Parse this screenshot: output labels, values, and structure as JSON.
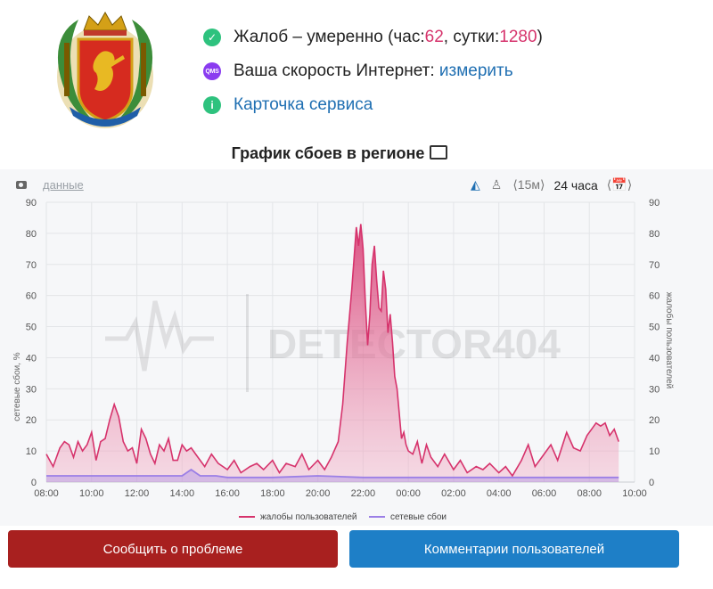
{
  "status": {
    "complaints_prefix": "Жалоб – умеренно (час: ",
    "hour_value": "62",
    "sep": ", сутки: ",
    "day_value": "1280",
    "suffix": ")",
    "speed_label": "Ваша скорость Интернет: ",
    "speed_link": "измерить",
    "card_link": "Карточка сервиса",
    "qms_icon_text": "QMS"
  },
  "chart_title": "График сбоев в регионе",
  "toolbar": {
    "data_link": "данные",
    "range_15m": "⟨15м⟩",
    "range_24h": "24 часа",
    "calendar": "⟨📅⟩"
  },
  "buttons": {
    "report": "Сообщить о проблеме",
    "comments": "Комментарии пользователей"
  },
  "colors": {
    "complaints": "#d6336c",
    "outages": "#9b7fe6",
    "report_button": "#a8201f",
    "comments_button": "#1e7fc7"
  },
  "chart_data": {
    "type": "area",
    "watermark": "DETECTOR404",
    "xlabel": "",
    "ylabel_left": "сетевые сбои, %",
    "ylabel_right": "жалобы пользователей",
    "ylim": [
      0,
      90
    ],
    "y_ticks": [
      0,
      10,
      20,
      30,
      40,
      50,
      60,
      70,
      80,
      90
    ],
    "x_range_hours": [
      8,
      34
    ],
    "x_ticks": [
      "08:00",
      "10:00",
      "12:00",
      "14:00",
      "16:00",
      "18:00",
      "20:00",
      "22:00",
      "00:00",
      "02:00",
      "04:00",
      "06:00",
      "08:00",
      "10:00"
    ],
    "legend": [
      "жалобы пользователей",
      "сетевые сбои"
    ],
    "legend_position": "bottom",
    "grid": true,
    "series": [
      {
        "name": "жалобы пользователей",
        "x": [
          8.0,
          8.3,
          8.6,
          8.8,
          9.0,
          9.2,
          9.4,
          9.6,
          9.8,
          10.0,
          10.2,
          10.4,
          10.6,
          10.8,
          11.0,
          11.2,
          11.4,
          11.6,
          11.8,
          12.0,
          12.2,
          12.4,
          12.6,
          12.8,
          13.0,
          13.2,
          13.4,
          13.6,
          13.8,
          14.0,
          14.2,
          14.4,
          14.6,
          14.8,
          15.0,
          15.3,
          15.6,
          16.0,
          16.3,
          16.6,
          17.0,
          17.3,
          17.6,
          18.0,
          18.3,
          18.6,
          19.0,
          19.3,
          19.6,
          20.0,
          20.3,
          20.6,
          20.9,
          21.1,
          21.3,
          21.5,
          21.7,
          21.8,
          21.9,
          22.0,
          22.1,
          22.2,
          22.3,
          22.4,
          22.5,
          22.6,
          22.7,
          22.8,
          22.9,
          23.0,
          23.1,
          23.2,
          23.3,
          23.4,
          23.5,
          23.6,
          23.7,
          23.8,
          23.9,
          24.0,
          24.2,
          24.4,
          24.6,
          24.8,
          25.0,
          25.3,
          25.6,
          26.0,
          26.3,
          26.6,
          27.0,
          27.3,
          27.6,
          28.0,
          28.3,
          28.6,
          29.0,
          29.3,
          29.6,
          30.0,
          30.3,
          30.6,
          31.0,
          31.3,
          31.6,
          31.9,
          32.1,
          32.3,
          32.5,
          32.7,
          32.9,
          33.1,
          33.3
        ],
        "values": [
          9,
          5,
          11,
          13,
          12,
          8,
          13,
          10,
          12,
          16,
          7,
          13,
          14,
          20,
          25,
          21,
          13,
          10,
          11,
          6,
          17,
          14,
          9,
          6,
          12,
          10,
          14,
          7,
          7,
          12,
          10,
          11,
          9,
          7,
          5,
          9,
          6,
          4,
          7,
          3,
          5,
          6,
          4,
          7,
          3,
          6,
          5,
          9,
          4,
          7,
          4,
          8,
          13,
          25,
          45,
          62,
          82,
          76,
          83,
          75,
          58,
          44,
          54,
          70,
          76,
          65,
          56,
          55,
          68,
          62,
          48,
          54,
          45,
          34,
          30,
          22,
          14,
          16,
          12,
          10,
          9,
          13,
          6,
          12,
          8,
          5,
          9,
          4,
          7,
          3,
          5,
          4,
          6,
          3,
          5,
          2,
          7,
          12,
          5,
          9,
          12,
          7,
          16,
          11,
          10,
          15,
          17,
          19,
          18,
          19,
          15,
          17,
          13
        ]
      },
      {
        "name": "сетевые сбои",
        "x": [
          8.0,
          10.0,
          12.0,
          14.0,
          14.4,
          14.6,
          14.8,
          15.5,
          16.0,
          18.0,
          20.0,
          22.0,
          24.0,
          26.0,
          28.0,
          30.0,
          32.0,
          33.3
        ],
        "values": [
          2,
          2,
          2,
          2,
          4,
          3,
          2,
          2,
          1.5,
          1.5,
          2,
          1.5,
          1.5,
          1.5,
          1.5,
          1.5,
          1.5,
          1.5
        ]
      }
    ]
  }
}
